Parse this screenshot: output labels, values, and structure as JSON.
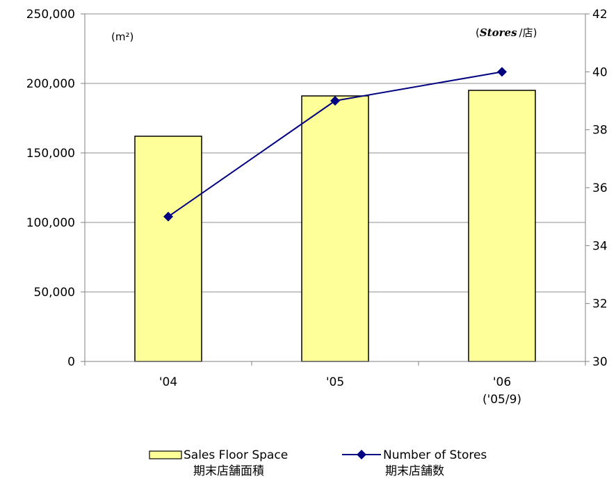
{
  "chart_data": {
    "type": "bar+line",
    "categories": [
      "'04",
      "'05",
      "'06"
    ],
    "category_sublabels": [
      "",
      "",
      "('05/9)"
    ],
    "series": [
      {
        "name": "Sales Floor Space",
        "name_jp": "期末店舗面積",
        "type": "bar",
        "axis": "left",
        "color": "#ffff99",
        "values": [
          162000,
          191000,
          195000
        ]
      },
      {
        "name": "Number of Stores",
        "name_jp": "期末店舗数",
        "type": "line",
        "axis": "right",
        "color": "#000080",
        "values": [
          35,
          39,
          40
        ]
      }
    ],
    "y_left": {
      "ylim": [
        0,
        250000
      ],
      "ticks": [
        0,
        50000,
        100000,
        150000,
        200000,
        250000
      ],
      "tick_labels": [
        "0",
        "50,000",
        "100,000",
        "150,000",
        "200,000",
        "250,000"
      ],
      "unit_label": "(m²)"
    },
    "y_right": {
      "ylim": [
        30,
        42
      ],
      "ticks": [
        30,
        32,
        34,
        36,
        38,
        40,
        42
      ],
      "tick_labels": [
        "30",
        "32",
        "34",
        "36",
        "38",
        "40",
        "42"
      ],
      "unit_label_open": "(",
      "unit_label_italic": "Stores",
      "unit_label_rest": "/店)"
    },
    "grid": true,
    "legend": "bottom"
  }
}
